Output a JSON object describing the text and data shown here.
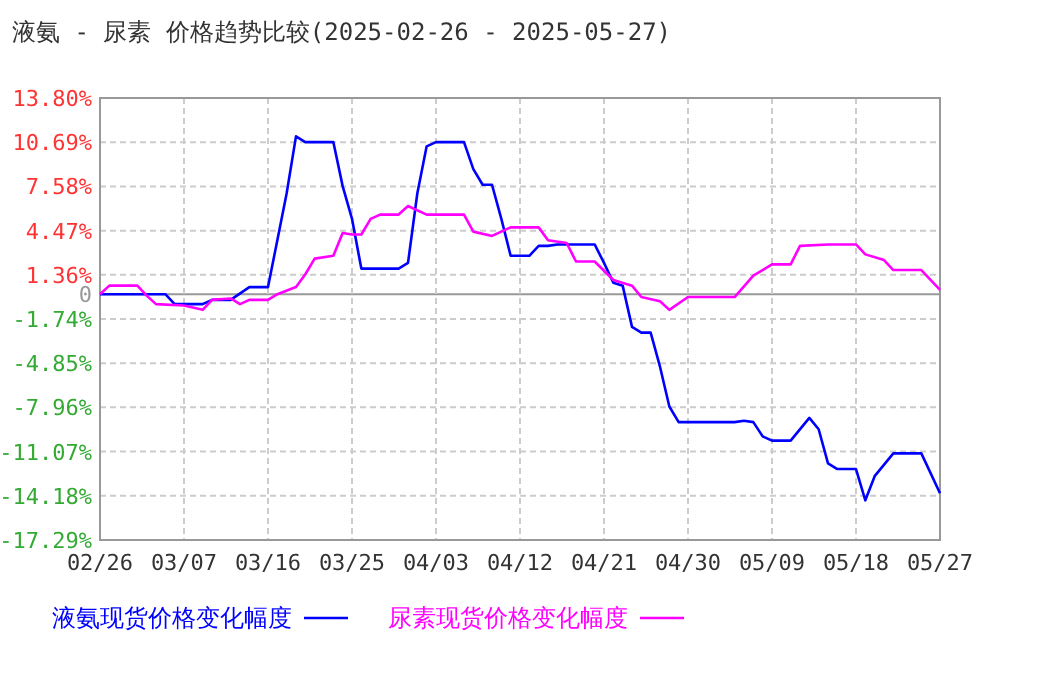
{
  "chart_data": {
    "type": "line",
    "title": "液氨 - 尿素 价格趋势比较(2025-02-26 - 2025-05-27)",
    "xlim": [
      "2025-02-26",
      "2025-05-27"
    ],
    "xticks": [
      {
        "value": "2025-02-26",
        "label": "02/26"
      },
      {
        "value": "2025-03-07",
        "label": "03/07"
      },
      {
        "value": "2025-03-16",
        "label": "03/16"
      },
      {
        "value": "2025-03-25",
        "label": "03/25"
      },
      {
        "value": "2025-04-03",
        "label": "04/03"
      },
      {
        "value": "2025-04-12",
        "label": "04/12"
      },
      {
        "value": "2025-04-21",
        "label": "04/21"
      },
      {
        "value": "2025-04-30",
        "label": "04/30"
      },
      {
        "value": "2025-05-09",
        "label": "05/09"
      },
      {
        "value": "2025-05-18",
        "label": "05/18"
      },
      {
        "value": "2025-05-27",
        "label": "05/27"
      }
    ],
    "ylim": [
      -17.29,
      13.8
    ],
    "yticks": [
      {
        "value": 13.8,
        "label": "13.80%"
      },
      {
        "value": 10.69,
        "label": "10.69%"
      },
      {
        "value": 7.58,
        "label": "7.58%"
      },
      {
        "value": 4.47,
        "label": "4.47%"
      },
      {
        "value": 1.36,
        "label": "1.36%"
      },
      0,
      {
        "value": -1.74,
        "label": "-1.74%"
      },
      {
        "value": -4.85,
        "label": "-4.85%"
      },
      {
        "value": -7.96,
        "label": "-7.96%"
      },
      {
        "value": -11.07,
        "label": "-11.07%"
      },
      {
        "value": -14.18,
        "label": "-14.18%"
      },
      {
        "value": -17.29,
        "label": "-17.29%"
      }
    ],
    "grid": true,
    "legend": "bottom",
    "marker": "none",
    "line_style": "solid",
    "series": [
      {
        "name": "液氨现货价格变化幅度",
        "color": "#0000ff",
        "x": [
          "2025-02-26",
          "2025-03-05",
          "2025-03-06",
          "2025-03-09",
          "2025-03-10",
          "2025-03-12",
          "2025-03-14",
          "2025-03-16",
          "2025-03-17",
          "2025-03-18",
          "2025-03-19",
          "2025-03-20",
          "2025-03-23",
          "2025-03-24",
          "2025-03-25",
          "2025-03-26",
          "2025-03-30",
          "2025-03-31",
          "2025-04-01",
          "2025-04-02",
          "2025-04-03",
          "2025-04-06",
          "2025-04-07",
          "2025-04-08",
          "2025-04-09",
          "2025-04-10",
          "2025-04-11",
          "2025-04-13",
          "2025-04-14",
          "2025-04-15",
          "2025-04-16",
          "2025-04-20",
          "2025-04-21",
          "2025-04-22",
          "2025-04-23",
          "2025-04-24",
          "2025-04-25",
          "2025-04-26",
          "2025-04-27",
          "2025-04-28",
          "2025-04-29",
          "2025-05-05",
          "2025-05-06",
          "2025-05-07",
          "2025-05-08",
          "2025-05-09",
          "2025-05-11",
          "2025-05-13",
          "2025-05-14",
          "2025-05-15",
          "2025-05-16",
          "2025-05-18",
          "2025-05-19",
          "2025-05-20",
          "2025-05-22",
          "2025-05-25",
          "2025-05-27"
        ],
        "values": [
          0,
          0,
          -0.7,
          -0.7,
          -0.4,
          -0.4,
          0.5,
          0.5,
          3.8,
          7.1,
          11.1,
          10.7,
          10.7,
          7.6,
          5.3,
          1.8,
          1.8,
          2.2,
          7.1,
          10.4,
          10.7,
          10.7,
          8.8,
          7.7,
          7.7,
          5.3,
          2.7,
          2.7,
          3.4,
          3.4,
          3.5,
          3.5,
          2.2,
          0.8,
          0.6,
          -2.3,
          -2.7,
          -2.7,
          -5.1,
          -7.9,
          -9.0,
          -9.0,
          -8.9,
          -9.0,
          -10.0,
          -10.3,
          -10.3,
          -8.7,
          -9.5,
          -11.9,
          -12.3,
          -12.3,
          -14.5,
          -12.8,
          -11.2,
          -11.2,
          -14.0
        ]
      },
      {
        "name": "尿素现货价格变化幅度",
        "color": "#ff00ff",
        "x": [
          "2025-02-26",
          "2025-02-27",
          "2025-03-02",
          "2025-03-03",
          "2025-03-04",
          "2025-03-07",
          "2025-03-09",
          "2025-03-10",
          "2025-03-12",
          "2025-03-13",
          "2025-03-14",
          "2025-03-16",
          "2025-03-17",
          "2025-03-19",
          "2025-03-20",
          "2025-03-21",
          "2025-03-23",
          "2025-03-24",
          "2025-03-25",
          "2025-03-26",
          "2025-03-27",
          "2025-03-28",
          "2025-03-30",
          "2025-03-31",
          "2025-04-02",
          "2025-04-06",
          "2025-04-07",
          "2025-04-09",
          "2025-04-11",
          "2025-04-14",
          "2025-04-15",
          "2025-04-17",
          "2025-04-18",
          "2025-04-20",
          "2025-04-22",
          "2025-04-24",
          "2025-04-25",
          "2025-04-27",
          "2025-04-28",
          "2025-04-30",
          "2025-05-05",
          "2025-05-07",
          "2025-05-09",
          "2025-05-11",
          "2025-05-12",
          "2025-05-15",
          "2025-05-18",
          "2025-05-19",
          "2025-05-21",
          "2025-05-22",
          "2025-05-25",
          "2025-05-27"
        ],
        "values": [
          0,
          0.6,
          0.6,
          -0.1,
          -0.7,
          -0.8,
          -1.1,
          -0.4,
          -0.3,
          -0.7,
          -0.4,
          -0.4,
          0,
          0.5,
          1.4,
          2.5,
          2.7,
          4.3,
          4.2,
          4.2,
          5.3,
          5.6,
          5.6,
          6.2,
          5.6,
          5.6,
          4.4,
          4.1,
          4.7,
          4.7,
          3.8,
          3.6,
          2.3,
          2.3,
          1.0,
          0.6,
          -0.2,
          -0.5,
          -1.1,
          -0.2,
          -0.2,
          1.3,
          2.1,
          2.1,
          3.4,
          3.5,
          3.5,
          2.8,
          2.4,
          1.7,
          1.7,
          0.3
        ]
      }
    ]
  }
}
